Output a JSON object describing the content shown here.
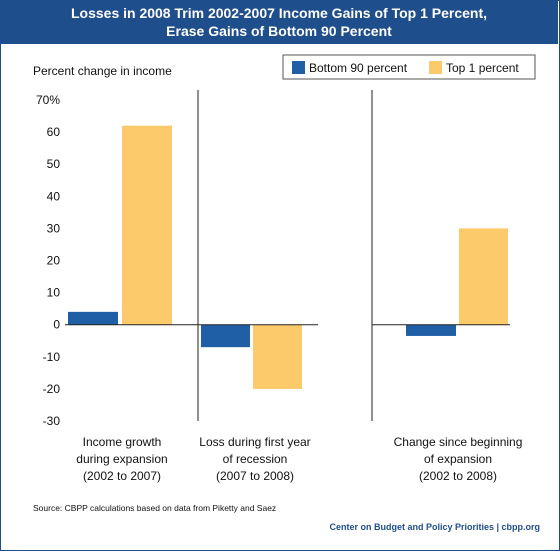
{
  "header": {
    "title_line1": "Losses in 2008 Trim 2002-2007 Income Gains of Top 1 Percent,",
    "title_line2": "Erase Gains of Bottom 90 Percent"
  },
  "footer": {
    "source": "Source: CBPP calculations based on data from Piketty and Saez",
    "credit": "Center on Budget and Policy Priorities | cbpp.org"
  },
  "chart_data": {
    "type": "bar",
    "title": "Losses in 2008 Trim 2002-2007 Income Gains of Top 1 Percent, Erase Gains of Bottom 90 Percent",
    "ylabel": "Percent change in income",
    "ylim": [
      -30,
      70
    ],
    "yticks": [
      70,
      60,
      50,
      40,
      30,
      20,
      10,
      0,
      -10,
      -20,
      -30
    ],
    "ytick_labels": [
      "70%",
      "60",
      "50",
      "40",
      "30",
      "20",
      "10",
      "0",
      "-10",
      "-20",
      "-30"
    ],
    "grid": false,
    "legend_position": "top-right",
    "categories": [
      [
        "Income growth",
        "during expansion",
        "(2002 to 2007)"
      ],
      [
        "Loss during first year",
        "of recession",
        "(2007 to 2008)"
      ],
      [
        "Change since beginning",
        "of expansion",
        "(2002 to 2008)"
      ]
    ],
    "series": [
      {
        "name": "Bottom 90 percent",
        "color": "#1f5fa6",
        "values": [
          4,
          -7,
          -3.5
        ]
      },
      {
        "name": "Top 1 percent",
        "color": "#fcc96b",
        "values": [
          62,
          -20,
          30
        ]
      }
    ]
  }
}
